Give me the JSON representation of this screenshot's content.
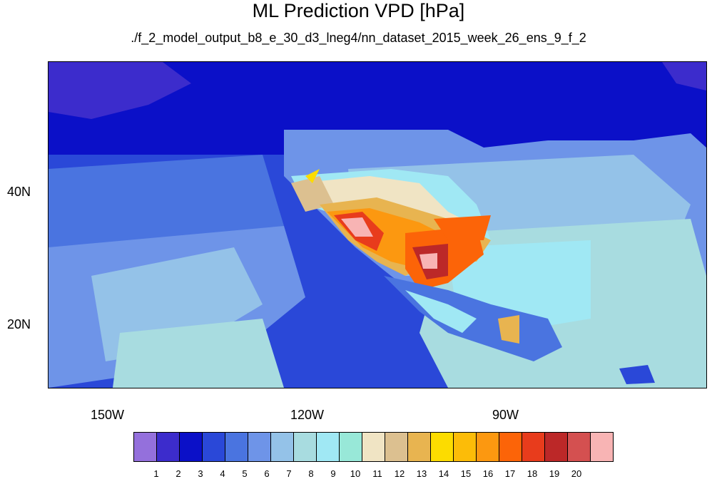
{
  "title": "ML Prediction VPD [hPa]",
  "subtitle": "./f_2_model_output_b8_e_30_d3_lneg4/nn_dataset_2015_week_26_ens_9_f_2",
  "axes": {
    "x_ticks": [
      "150W",
      "120W",
      "90W"
    ],
    "y_ticks": [
      "40N",
      "20N"
    ]
  },
  "legend": {
    "labels": [
      "1",
      "2",
      "3",
      "4",
      "5",
      "6",
      "7",
      "8",
      "9",
      "10",
      "11",
      "12",
      "13",
      "14",
      "15",
      "16",
      "17",
      "18",
      "19",
      "20"
    ],
    "colors": [
      "#9470dc",
      "#3c2ccc",
      "#0b10c8",
      "#2a48d8",
      "#4a74e0",
      "#6e94e8",
      "#94c2e8",
      "#a8dce0",
      "#a0e8f4",
      "#98e8d8",
      "#f0e4c4",
      "#dcc090",
      "#e8b450",
      "#fcdc00",
      "#fcbc08",
      "#fc9810",
      "#fc6408",
      "#e83c1c",
      "#bc2828",
      "#d45050",
      "#f8b4b4"
    ]
  }
}
